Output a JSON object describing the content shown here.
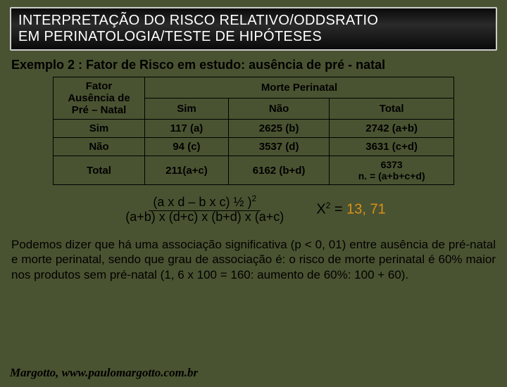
{
  "title": {
    "line1": "INTERPRETAÇÃO DO RISCO RELATIVO/ODDSRATIO",
    "line2": "EM PERINATOLOGIA/TESTE DE HIPÓTESES",
    "bg_gradient": [
      "#0a0a0a",
      "#2a2a2a",
      "#0a0a0a"
    ],
    "border_color": "#cccccc",
    "text_color": "#ffffff",
    "fontsize": 20
  },
  "subtitle": "Exemplo 2 : Fator de Risco em estudo: ausência de pré - natal",
  "table": {
    "type": "table",
    "border_color": "#000000",
    "text_color": "#000000",
    "fontsize": 15,
    "factor_header": "Fator\nAusência de\nPré – Natal",
    "outcome_header": "Morte Perinatal",
    "columns": [
      "Sim",
      "Não",
      "Total"
    ],
    "rows": [
      {
        "label": "Sim",
        "cells": [
          "117 (a)",
          "2625 (b)",
          "2742 (a+b)"
        ]
      },
      {
        "label": "Não",
        "cells": [
          "94 (c)",
          "3537 (d)",
          "3631 (c+d)"
        ]
      },
      {
        "label": "Total",
        "cells": [
          "211(a+c)",
          "6162 (b+d)",
          "6373\nn. = (a+b+c+d)"
        ]
      }
    ]
  },
  "formula": {
    "numerator": "(a x d – b x c) ½ )",
    "numerator_exp": "2",
    "denominator": "(a+b) x (d+c) x (b+d) x (a+c)",
    "chi_label": "X",
    "chi_exp": "2",
    "equals": " = ",
    "chi_value": "13, 71",
    "value_color": "#d99018"
  },
  "paragraph": "Podemos dizer que há uma associação significativa (p < 0, 01) entre ausência de pré-natal e morte perinatal, sendo que grau de associação é: o risco de morte perinatal é 60% maior nos produtos sem pré-natal (1, 6 x 100 = 160: aumento de 60%: 100 + 60).",
  "footer": "Margotto, www.paulomargotto.com.br",
  "page_bg": "#4a5331"
}
